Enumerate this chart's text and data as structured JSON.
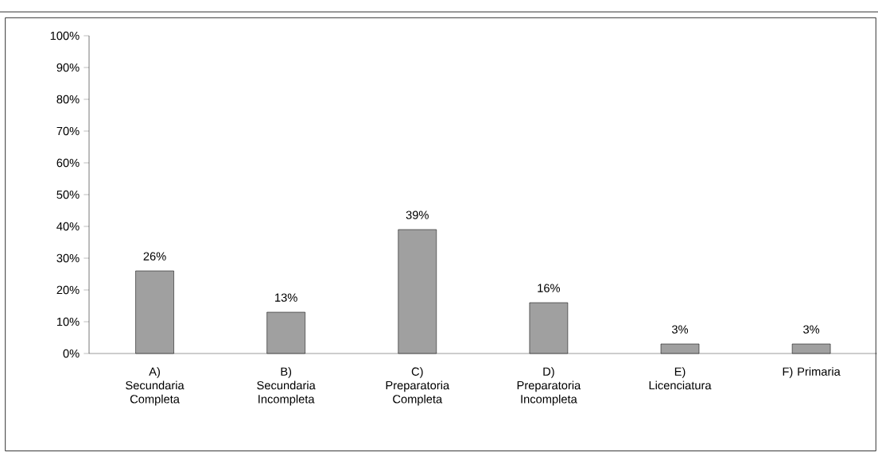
{
  "chart_data": {
    "type": "bar",
    "categories": [
      "A) Secundaria Completa",
      "B) Secundaria Incompleta",
      "C) Preparatoria Completa",
      "D) Preparatoria Incompleta",
      "E) Licenciatura",
      "F) Primaria"
    ],
    "values": [
      26,
      13,
      39,
      16,
      3,
      3
    ],
    "value_labels": [
      "26%",
      "13%",
      "39%",
      "16%",
      "3%",
      "3%"
    ],
    "color": "#a0a0a0",
    "ylim": [
      0,
      100
    ],
    "yticks": [
      {
        "value": 0,
        "label": "0%"
      },
      {
        "value": 10,
        "label": "10%"
      },
      {
        "value": 20,
        "label": "20%"
      },
      {
        "value": 30,
        "label": "30%"
      },
      {
        "value": 40,
        "label": "40%"
      },
      {
        "value": 50,
        "label": "50%"
      },
      {
        "value": 60,
        "label": "60%"
      },
      {
        "value": 70,
        "label": "70%"
      },
      {
        "value": 80,
        "label": "80%"
      },
      {
        "value": 90,
        "label": "90%"
      },
      {
        "value": 100,
        "label": "100%"
      }
    ],
    "grid": false
  }
}
